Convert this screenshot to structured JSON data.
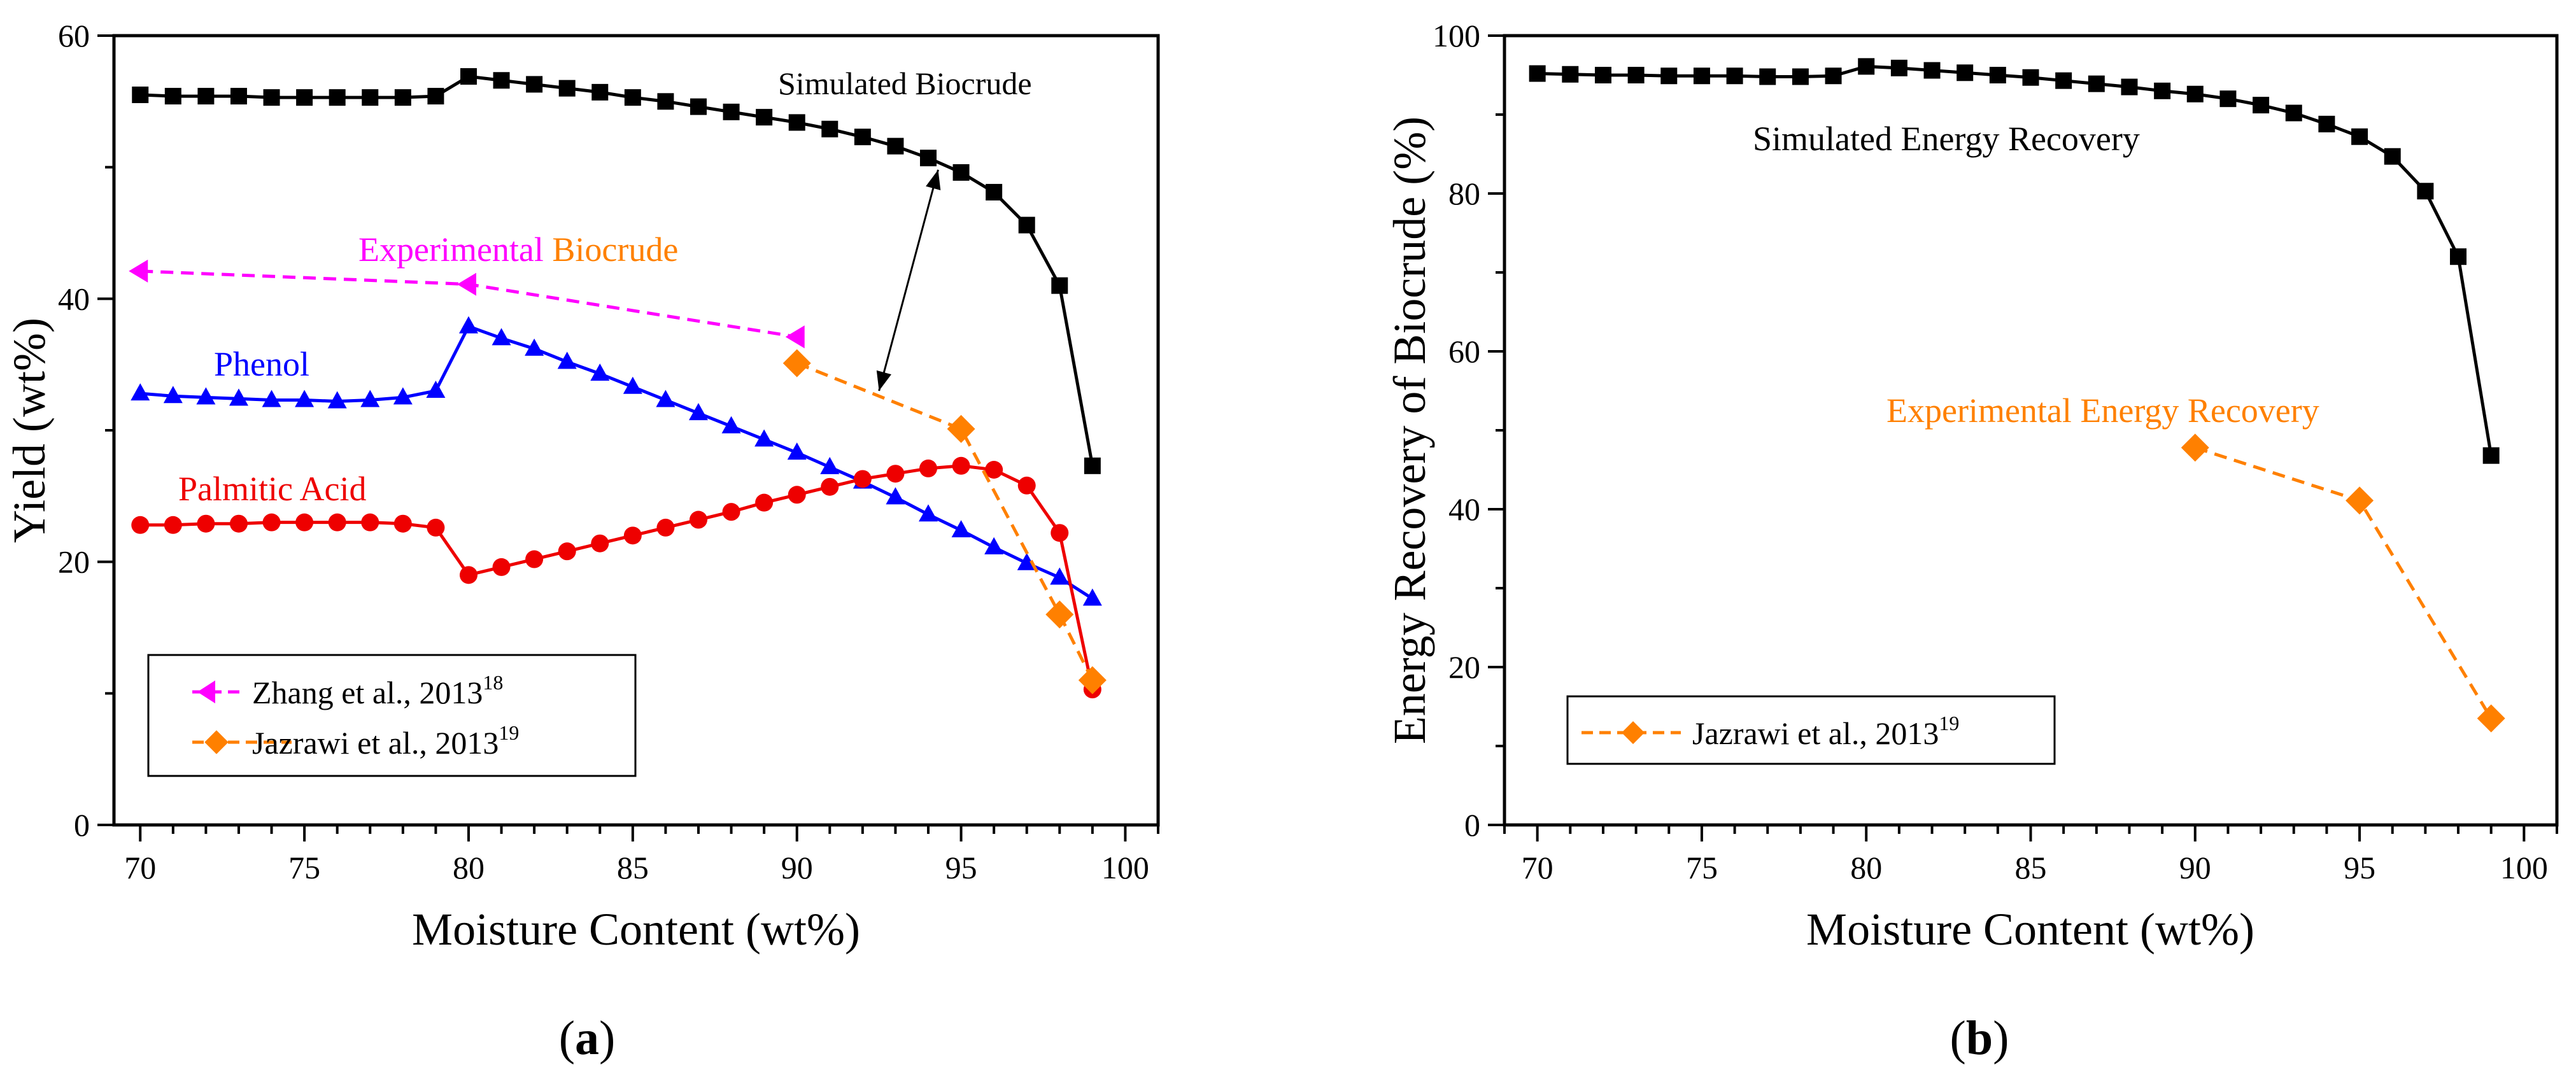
{
  "chart_data": [
    {
      "panel_label": "a",
      "type": "line",
      "title": "",
      "xlabel": "Moisture Content (wt%)",
      "ylabel": "Yield (wt%)",
      "xlim": [
        69.2,
        101
      ],
      "ylim": [
        0,
        60
      ],
      "xticks": [
        70,
        75,
        80,
        85,
        90,
        95,
        100
      ],
      "yticks": [
        0,
        20,
        40,
        60
      ],
      "grid": false,
      "legend": {
        "position": "bottom-left",
        "entries": [
          {
            "name": "Zhang et al., 2013",
            "sup": "18",
            "color": "#ff00ff",
            "marker": "triangle-left",
            "dash": true
          },
          {
            "name": "Jazrawi et al., 2013",
            "sup": "19",
            "color": "#ff8000",
            "marker": "diamond",
            "dash": true
          }
        ]
      },
      "series": [
        {
          "name": "Simulated Biocrude",
          "color": "#000000",
          "marker": "square",
          "dash": false,
          "x": [
            70,
            71,
            72,
            73,
            74,
            75,
            76,
            77,
            78,
            79,
            80,
            81,
            82,
            83,
            84,
            85,
            86,
            87,
            88,
            89,
            90,
            91,
            92,
            93,
            94,
            95,
            96,
            97,
            98,
            99
          ],
          "y": [
            55.5,
            55.4,
            55.4,
            55.4,
            55.3,
            55.3,
            55.3,
            55.3,
            55.3,
            55.4,
            56.9,
            56.6,
            56.3,
            56.0,
            55.7,
            55.3,
            55.0,
            54.6,
            54.2,
            53.8,
            53.4,
            52.9,
            52.3,
            51.6,
            50.7,
            49.6,
            48.1,
            45.6,
            41.0,
            27.3
          ]
        },
        {
          "name": "Phenol",
          "color": "#0000ff",
          "marker": "triangle-up",
          "dash": false,
          "x": [
            70,
            71,
            72,
            73,
            74,
            75,
            76,
            77,
            78,
            79,
            80,
            81,
            82,
            83,
            84,
            85,
            86,
            87,
            88,
            89,
            90,
            91,
            92,
            93,
            94,
            95,
            96,
            97,
            98,
            99
          ],
          "y": [
            32.8,
            32.6,
            32.5,
            32.4,
            32.3,
            32.3,
            32.2,
            32.3,
            32.5,
            33.0,
            37.9,
            37.0,
            36.2,
            35.2,
            34.3,
            33.3,
            32.3,
            31.3,
            30.3,
            29.3,
            28.3,
            27.2,
            26.1,
            24.9,
            23.6,
            22.4,
            21.1,
            19.9,
            18.8,
            17.2
          ]
        },
        {
          "name": "Palmitic Acid",
          "color": "#ee0000",
          "marker": "circle",
          "dash": false,
          "x": [
            70,
            71,
            72,
            73,
            74,
            75,
            76,
            77,
            78,
            79,
            80,
            81,
            82,
            83,
            84,
            85,
            86,
            87,
            88,
            89,
            90,
            91,
            92,
            93,
            94,
            95,
            96,
            97,
            98,
            99
          ],
          "y": [
            22.8,
            22.8,
            22.9,
            22.9,
            23.0,
            23.0,
            23.0,
            23.0,
            22.9,
            22.6,
            19.0,
            19.6,
            20.2,
            20.8,
            21.4,
            22.0,
            22.6,
            23.2,
            23.8,
            24.5,
            25.1,
            25.7,
            26.3,
            26.7,
            27.1,
            27.3,
            27.0,
            25.8,
            22.2,
            10.3
          ]
        },
        {
          "name": "Zhang et al., 2013",
          "color": "#ff00ff",
          "marker": "triangle-left",
          "dash": true,
          "x": [
            70,
            80,
            90
          ],
          "y": [
            42.1,
            41.1,
            37.1
          ]
        },
        {
          "name": "Jazrawi et al., 2013",
          "color": "#ff8000",
          "marker": "diamond",
          "dash": true,
          "x": [
            90,
            95,
            98,
            99
          ],
          "y": [
            35.1,
            30.1,
            16.0,
            11.0
          ]
        }
      ],
      "annotations": {
        "simulated": "Simulated Biocrude",
        "experimental_part1": "Experimental",
        "experimental_part2": " Biocrude",
        "phenol": "Phenol",
        "palmitic": "Palmitic Acid"
      }
    },
    {
      "panel_label": "b",
      "type": "line",
      "title": "",
      "xlabel": "Moisture Content (wt%)",
      "ylabel": "Energy Recovery of Biocrude (%)",
      "xlim": [
        69,
        101
      ],
      "ylim": [
        0,
        100
      ],
      "xticks": [
        70,
        75,
        80,
        85,
        90,
        95,
        100
      ],
      "yticks": [
        0,
        20,
        40,
        60,
        80,
        100
      ],
      "grid": false,
      "legend": {
        "position": "bottom-left",
        "entries": [
          {
            "name": "Jazrawi et al., 2013",
            "sup": "19",
            "color": "#ff8000",
            "marker": "diamond",
            "dash": true
          }
        ]
      },
      "series": [
        {
          "name": "Simulated Energy Recovery",
          "color": "#000000",
          "marker": "square",
          "dash": false,
          "x": [
            70,
            71,
            72,
            73,
            74,
            75,
            76,
            77,
            78,
            79,
            80,
            81,
            82,
            83,
            84,
            85,
            86,
            87,
            88,
            89,
            90,
            91,
            92,
            93,
            94,
            95,
            96,
            97,
            98,
            99
          ],
          "y": [
            95.2,
            95.1,
            95.0,
            95.0,
            94.9,
            94.9,
            94.9,
            94.8,
            94.8,
            94.9,
            96.1,
            95.9,
            95.6,
            95.3,
            95.0,
            94.7,
            94.3,
            93.9,
            93.5,
            93.0,
            92.6,
            92.0,
            91.2,
            90.2,
            88.8,
            87.2,
            84.7,
            80.3,
            72.0,
            46.8
          ]
        },
        {
          "name": "Jazrawi et al., 2013",
          "color": "#ff8000",
          "marker": "diamond",
          "dash": true,
          "x": [
            90,
            95,
            99
          ],
          "y": [
            47.8,
            41.1,
            13.5
          ]
        }
      ],
      "annotations": {
        "simulated": "Simulated Energy Recovery",
        "experimental": "Experimental Energy Recovery"
      }
    }
  ]
}
